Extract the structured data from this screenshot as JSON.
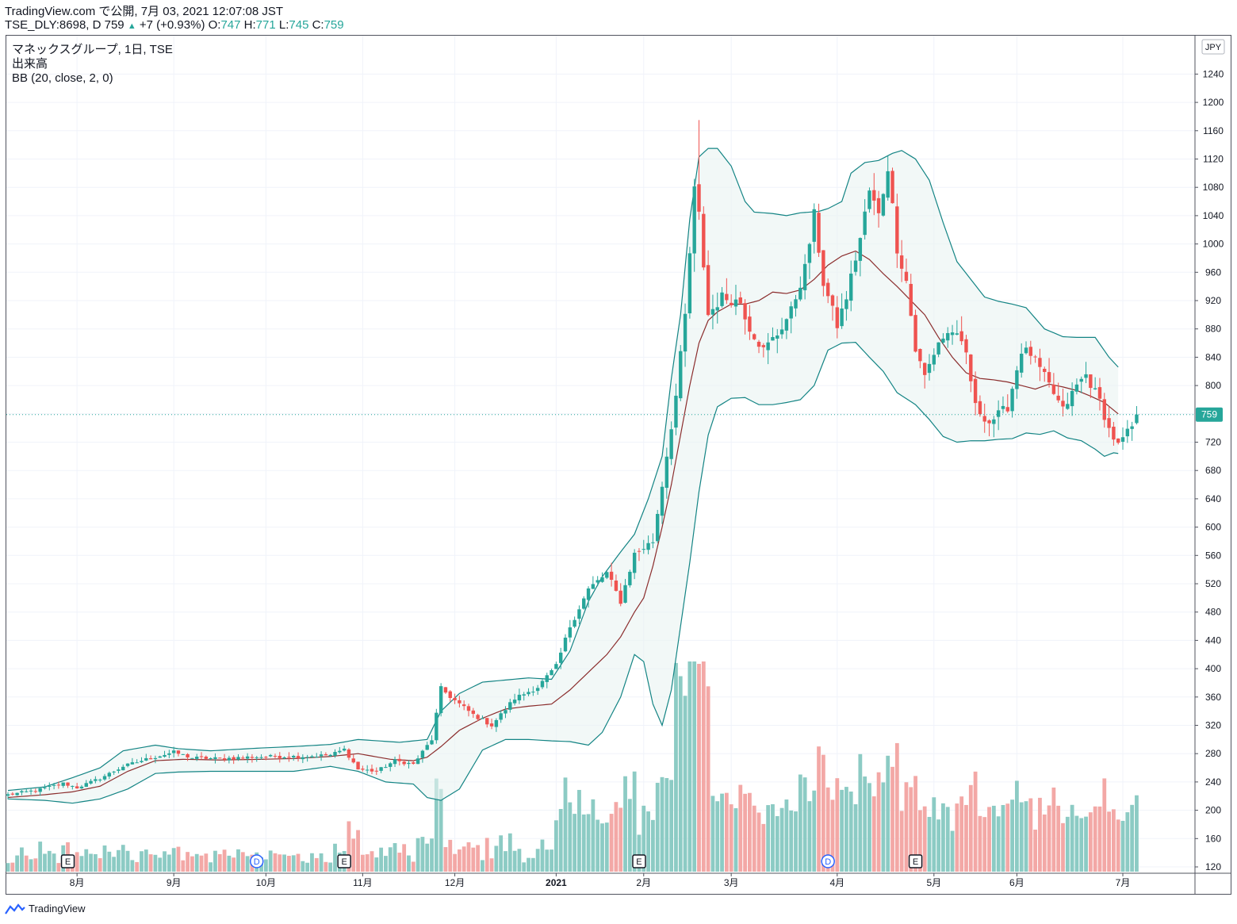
{
  "header": {
    "line1": "TradingView.com で公開, 7月 03, 2021 12:07:08 JST",
    "symbol": "TSE_DLY:8698, D 759",
    "change_arrow": "▲",
    "change": "+7 (+0.93%)",
    "o_label": "O:",
    "o_value": "747",
    "h_label": "H:",
    "h_value": "771",
    "l_label": "L:",
    "l_value": "745",
    "c_label": "C:",
    "c_value": "759"
  },
  "legend": {
    "title": "マネックスグループ, 1日, TSE",
    "volume": "出来高",
    "bb": "BB (20, close, 2, 0)"
  },
  "currency": "JPY",
  "last_price_label": "759",
  "footer": {
    "brand": "TradingView"
  },
  "colors": {
    "up": "#26a69a",
    "down": "#ef5350",
    "vol_up": "#8ccbc4",
    "vol_down": "#f3a8a6",
    "band": "#138484",
    "basis": "#8b2d2d",
    "last": "#26a69a"
  },
  "chart_data": {
    "type": "candlestick",
    "price_axis_ticks": [
      "120",
      "160",
      "200",
      "240",
      "280",
      "320",
      "360",
      "400",
      "440",
      "480",
      "520",
      "560",
      "600",
      "640",
      "680",
      "720",
      "760",
      "800",
      "840",
      "880",
      "920",
      "960",
      "1000",
      "1040",
      "1080",
      "1120",
      "1160",
      "1200",
      "1240"
    ],
    "price_axis_ticks_visible": [
      "120",
      "160",
      "200",
      "240",
      "280",
      "320",
      "360",
      "400",
      "440",
      "480",
      "520",
      "560",
      "600",
      "640",
      "680",
      "720",
      "800",
      "840",
      "880",
      "920",
      "960",
      "1000",
      "1040",
      "1080",
      "1120",
      "1160",
      "1200",
      "1240"
    ],
    "time_axis": [
      {
        "label": "8月",
        "bar": 15
      },
      {
        "label": "9月",
        "bar": 36
      },
      {
        "label": "10月",
        "bar": 56
      },
      {
        "label": "11月",
        "bar": 77
      },
      {
        "label": "12月",
        "bar": 97
      },
      {
        "label": "2021",
        "bar": 119,
        "bold": true
      },
      {
        "label": "2月",
        "bar": 138
      },
      {
        "label": "3月",
        "bar": 157
      },
      {
        "label": "4月",
        "bar": 180
      },
      {
        "label": "5月",
        "bar": 201
      },
      {
        "label": "6月",
        "bar": 219
      },
      {
        "label": "7月",
        "bar": 242
      }
    ],
    "events": [
      {
        "type": "E",
        "bar": 13
      },
      {
        "type": "D",
        "bar": 54
      },
      {
        "type": "E",
        "bar": 73
      },
      {
        "type": "E",
        "bar": 137
      },
      {
        "type": "D",
        "bar": 178
      },
      {
        "type": "E",
        "bar": 197
      }
    ],
    "anchors": [
      [
        0,
        222
      ],
      [
        6,
        228
      ],
      [
        12,
        238
      ],
      [
        15,
        232
      ],
      [
        20,
        245
      ],
      [
        25,
        262
      ],
      [
        30,
        272
      ],
      [
        36,
        282
      ],
      [
        40,
        274
      ],
      [
        46,
        273
      ],
      [
        52,
        275
      ],
      [
        58,
        276
      ],
      [
        64,
        276
      ],
      [
        70,
        278
      ],
      [
        73,
        286
      ],
      [
        76,
        258
      ],
      [
        80,
        255
      ],
      [
        84,
        270
      ],
      [
        88,
        265
      ],
      [
        92,
        300
      ],
      [
        94,
        372
      ],
      [
        97,
        355
      ],
      [
        101,
        335
      ],
      [
        105,
        320
      ],
      [
        110,
        358
      ],
      [
        115,
        374
      ],
      [
        119,
        403
      ],
      [
        122,
        460
      ],
      [
        126,
        512
      ],
      [
        130,
        535
      ],
      [
        133,
        495
      ],
      [
        136,
        562
      ],
      [
        140,
        580
      ],
      [
        142,
        660
      ],
      [
        145,
        785
      ],
      [
        147,
        898
      ],
      [
        149,
        1075
      ],
      [
        150,
        1040
      ],
      [
        152,
        900
      ],
      [
        155,
        925
      ],
      [
        159,
        918
      ],
      [
        161,
        882
      ],
      [
        164,
        850
      ],
      [
        167,
        873
      ],
      [
        170,
        905
      ],
      [
        173,
        965
      ],
      [
        175,
        1040
      ],
      [
        177,
        945
      ],
      [
        180,
        885
      ],
      [
        182,
        925
      ],
      [
        185,
        1008
      ],
      [
        187,
        1075
      ],
      [
        189,
        1040
      ],
      [
        191,
        1110
      ],
      [
        193,
        995
      ],
      [
        195,
        948
      ],
      [
        197,
        850
      ],
      [
        199,
        813
      ],
      [
        202,
        862
      ],
      [
        205,
        878
      ],
      [
        208,
        845
      ],
      [
        210,
        770
      ],
      [
        213,
        748
      ],
      [
        217,
        770
      ],
      [
        220,
        850
      ],
      [
        222,
        845
      ],
      [
        225,
        812
      ],
      [
        229,
        765
      ],
      [
        232,
        800
      ],
      [
        234,
        815
      ],
      [
        237,
        778
      ],
      [
        239,
        738
      ],
      [
        241,
        715
      ],
      [
        244,
        742
      ],
      [
        245,
        759
      ]
    ],
    "bb_upper_points": [
      [
        0,
        228
      ],
      [
        8,
        233
      ],
      [
        14,
        246
      ],
      [
        20,
        260
      ],
      [
        25,
        284
      ],
      [
        32,
        292
      ],
      [
        37,
        287
      ],
      [
        44,
        284
      ],
      [
        55,
        288
      ],
      [
        62,
        290
      ],
      [
        70,
        293
      ],
      [
        76,
        300
      ],
      [
        85,
        296
      ],
      [
        91,
        300
      ],
      [
        94,
        340
      ],
      [
        98,
        365
      ],
      [
        103,
        381
      ],
      [
        108,
        384
      ],
      [
        113,
        387
      ],
      [
        118,
        385
      ],
      [
        122,
        425
      ],
      [
        126,
        495
      ],
      [
        129,
        530
      ],
      [
        133,
        565
      ],
      [
        136,
        590
      ],
      [
        139,
        640
      ],
      [
        142,
        700
      ],
      [
        144,
        810
      ],
      [
        146,
        900
      ],
      [
        148,
        1035
      ],
      [
        150,
        1123
      ],
      [
        152,
        1135
      ],
      [
        154,
        1135
      ],
      [
        157,
        1110
      ],
      [
        160,
        1060
      ],
      [
        162,
        1045
      ],
      [
        166,
        1043
      ],
      [
        169,
        1040
      ],
      [
        172,
        1044
      ],
      [
        176,
        1046
      ],
      [
        178,
        1050
      ],
      [
        181,
        1060
      ],
      [
        183,
        1100
      ],
      [
        186,
        1115
      ],
      [
        189,
        1118
      ],
      [
        192,
        1128
      ],
      [
        194,
        1132
      ],
      [
        197,
        1120
      ],
      [
        200,
        1090
      ],
      [
        203,
        1030
      ],
      [
        206,
        975
      ],
      [
        209,
        950
      ],
      [
        212,
        925
      ],
      [
        215,
        919
      ],
      [
        218,
        915
      ],
      [
        221,
        910
      ],
      [
        225,
        880
      ],
      [
        229,
        869
      ],
      [
        232,
        868
      ],
      [
        236,
        868
      ],
      [
        239,
        840
      ],
      [
        241,
        826
      ]
    ],
    "bb_lower_points": [
      [
        0,
        216
      ],
      [
        8,
        214
      ],
      [
        14,
        210
      ],
      [
        20,
        216
      ],
      [
        26,
        230
      ],
      [
        32,
        252
      ],
      [
        37,
        254
      ],
      [
        44,
        255
      ],
      [
        55,
        255
      ],
      [
        62,
        255
      ],
      [
        70,
        262
      ],
      [
        76,
        255
      ],
      [
        82,
        240
      ],
      [
        88,
        237
      ],
      [
        91,
        218
      ],
      [
        94,
        214
      ],
      [
        98,
        230
      ],
      [
        103,
        285
      ],
      [
        108,
        300
      ],
      [
        113,
        300
      ],
      [
        118,
        298
      ],
      [
        122,
        297
      ],
      [
        126,
        292
      ],
      [
        129,
        310
      ],
      [
        133,
        360
      ],
      [
        136,
        420
      ],
      [
        138,
        410
      ],
      [
        140,
        350
      ],
      [
        142,
        320
      ],
      [
        144,
        370
      ],
      [
        146,
        460
      ],
      [
        148,
        550
      ],
      [
        150,
        650
      ],
      [
        152,
        730
      ],
      [
        154,
        770
      ],
      [
        157,
        782
      ],
      [
        160,
        783
      ],
      [
        163,
        773
      ],
      [
        166,
        773
      ],
      [
        169,
        776
      ],
      [
        172,
        780
      ],
      [
        175,
        800
      ],
      [
        178,
        850
      ],
      [
        181,
        860
      ],
      [
        184,
        861
      ],
      [
        187,
        840
      ],
      [
        190,
        820
      ],
      [
        193,
        790
      ],
      [
        197,
        773
      ],
      [
        200,
        752
      ],
      [
        203,
        728
      ],
      [
        206,
        720
      ],
      [
        209,
        722
      ],
      [
        212,
        722
      ],
      [
        215,
        724
      ],
      [
        218,
        725
      ],
      [
        221,
        733
      ],
      [
        224,
        731
      ],
      [
        227,
        736
      ],
      [
        230,
        726
      ],
      [
        233,
        722
      ],
      [
        236,
        710
      ],
      [
        238,
        700
      ],
      [
        240,
        705
      ],
      [
        241,
        704
      ]
    ],
    "bb_basis_points": [
      [
        0,
        218
      ],
      [
        8,
        222
      ],
      [
        14,
        226
      ],
      [
        20,
        234
      ],
      [
        26,
        255
      ],
      [
        32,
        270
      ],
      [
        38,
        272
      ],
      [
        46,
        271
      ],
      [
        55,
        272
      ],
      [
        62,
        273
      ],
      [
        70,
        276
      ],
      [
        76,
        280
      ],
      [
        83,
        272
      ],
      [
        88,
        270
      ],
      [
        91,
        275
      ],
      [
        94,
        290
      ],
      [
        98,
        313
      ],
      [
        103,
        330
      ],
      [
        108,
        343
      ],
      [
        113,
        347
      ],
      [
        118,
        350
      ],
      [
        122,
        370
      ],
      [
        126,
        395
      ],
      [
        130,
        420
      ],
      [
        133,
        445
      ],
      [
        136,
        480
      ],
      [
        138,
        500
      ],
      [
        140,
        545
      ],
      [
        142,
        600
      ],
      [
        144,
        660
      ],
      [
        146,
        730
      ],
      [
        148,
        800
      ],
      [
        150,
        860
      ],
      [
        152,
        892
      ],
      [
        154,
        904
      ],
      [
        157,
        915
      ],
      [
        160,
        915
      ],
      [
        163,
        920
      ],
      [
        166,
        932
      ],
      [
        169,
        930
      ],
      [
        172,
        935
      ],
      [
        175,
        950
      ],
      [
        178,
        970
      ],
      [
        181,
        983
      ],
      [
        184,
        990
      ],
      [
        187,
        978
      ],
      [
        190,
        958
      ],
      [
        193,
        940
      ],
      [
        196,
        920
      ],
      [
        199,
        900
      ],
      [
        202,
        868
      ],
      [
        205,
        840
      ],
      [
        208,
        818
      ],
      [
        211,
        810
      ],
      [
        214,
        808
      ],
      [
        217,
        805
      ],
      [
        220,
        800
      ],
      [
        223,
        795
      ],
      [
        226,
        802
      ],
      [
        229,
        798
      ],
      [
        232,
        793
      ],
      [
        235,
        785
      ],
      [
        238,
        776
      ],
      [
        241,
        760
      ]
    ],
    "last_price": 759,
    "bars_total": 246
  }
}
